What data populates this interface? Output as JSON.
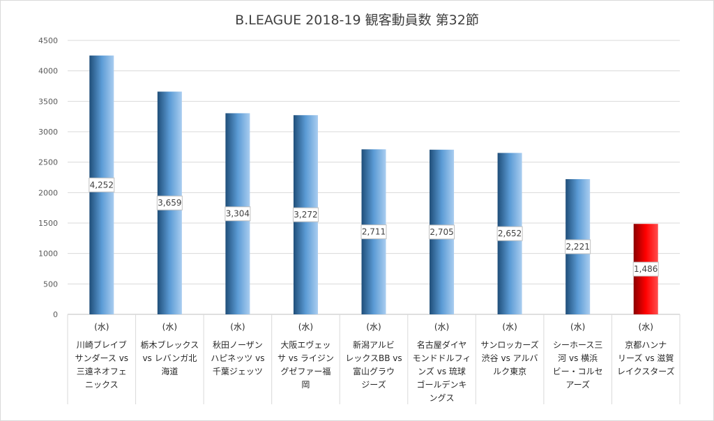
{
  "chart_data": {
    "type": "bar",
    "title": "B.LEAGUE 2018-19 観客動員数 第32節",
    "xlabel": "",
    "ylabel": "",
    "ylim": [
      0,
      4500
    ],
    "yticks": [
      0,
      500,
      1000,
      1500,
      2000,
      2500,
      3000,
      3500,
      4000,
      4500
    ],
    "grid": true,
    "legend": "none",
    "day_label": "(水)",
    "categories": [
      [
        "川崎ブレイブ",
        "サンダース vs",
        "三遠ネオフェ",
        "ニックス"
      ],
      [
        "栃木ブレックス",
        "vs レバンガ北",
        "海道"
      ],
      [
        "秋田ノーザン",
        "ハピネッツ vs",
        "千葉ジェッツ"
      ],
      [
        "大阪エヴェッ",
        "サ vs ライジン",
        "グゼファー福",
        "岡"
      ],
      [
        "新潟アルビ",
        "レックスBB vs",
        "富山グラウ",
        "ジーズ"
      ],
      [
        "名古屋ダイヤ",
        "モンドドルフィ",
        "ンズ vs 琉球",
        "ゴールデンキ",
        "ングス"
      ],
      [
        "サンロッカーズ",
        "渋谷 vs アルバ",
        "ルク東京"
      ],
      [
        "シーホース三",
        "河 vs 横浜",
        "ビー・コルセ",
        "アーズ"
      ],
      [
        "京都ハンナ",
        "リーズ vs 滋賀",
        "レイクスターズ"
      ]
    ],
    "values": [
      4252,
      3659,
      3304,
      3272,
      2711,
      2705,
      2652,
      2221,
      1486
    ],
    "data_labels": [
      "4,252",
      "3,659",
      "3,304",
      "3,272",
      "2,711",
      "2,705",
      "2,652",
      "2,221",
      "1,486"
    ],
    "bar_colors": [
      "blue",
      "blue",
      "blue",
      "blue",
      "blue",
      "blue",
      "blue",
      "blue",
      "red"
    ],
    "colors": {
      "blue_dark": "#1f4e79",
      "blue_mid": "#5b9bd5",
      "blue_light": "#a9cdf0",
      "red_dark": "#8b0000",
      "red_mid": "#ff0000",
      "red_light": "#ff4d4d",
      "grid": "#d9d9d9",
      "axis": "#bfbfbf"
    }
  }
}
